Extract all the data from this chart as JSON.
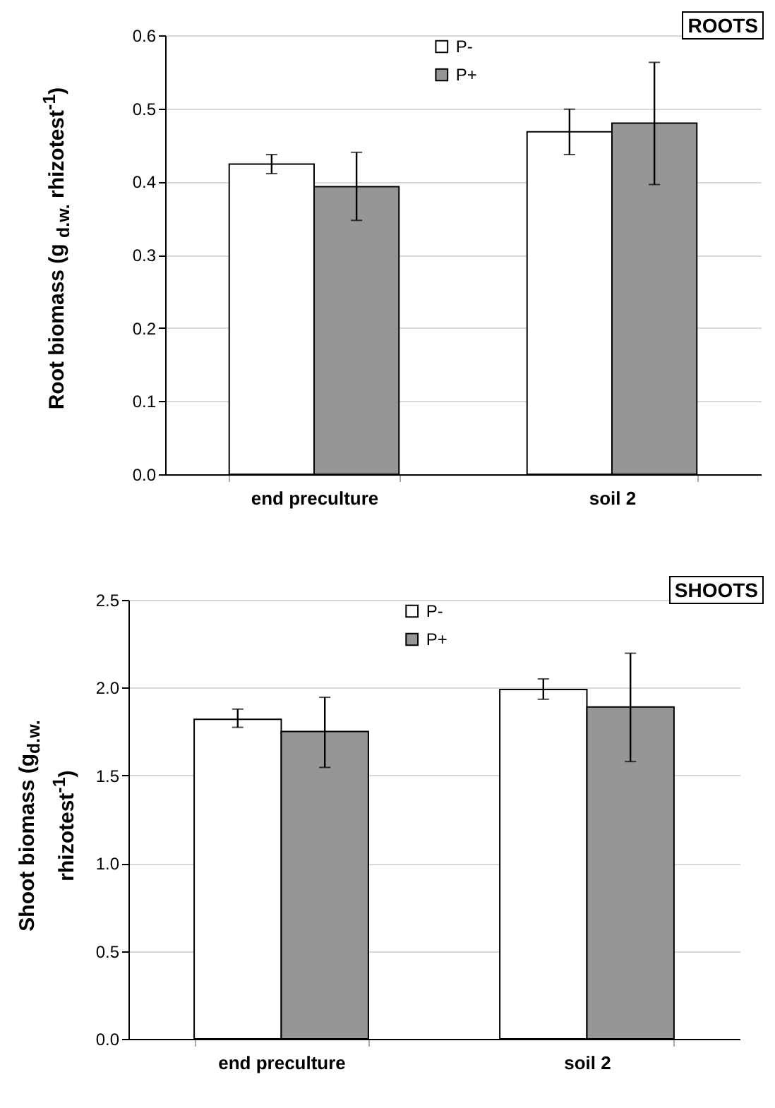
{
  "chart_data": [
    {
      "type": "bar",
      "title": "ROOTS",
      "ylabel": "Root biomass (g $_{d.w.}$ rhizotest$^{-1}$)",
      "categories": [
        "end preculture",
        "soil 2"
      ],
      "series": [
        {
          "name": "P-",
          "color": "#ffffff",
          "values": [
            0.424,
            0.468
          ],
          "errors": [
            [
              0.411,
              0.437
            ],
            [
              0.437,
              0.499
            ]
          ]
        },
        {
          "name": "P+",
          "color": "#969696",
          "values": [
            0.393,
            0.48
          ],
          "errors": [
            [
              0.347,
              0.44
            ],
            [
              0.396,
              0.563
            ]
          ]
        }
      ],
      "ylim": [
        0,
        0.6
      ],
      "yticks": [
        {
          "value": 0,
          "label": "0.0"
        },
        0.1,
        0.2,
        0.3,
        0.4,
        0.5,
        0.6
      ],
      "grid": "y",
      "legend": "top"
    },
    {
      "type": "bar",
      "title": "SHOOTS",
      "ylabel": "Shoot biomass (g$_{d.w.}$ rhizotest$^{-1}$)",
      "categories": [
        "end preculture",
        "soil 2"
      ],
      "series": [
        {
          "name": "P-",
          "color": "#ffffff",
          "values": [
            1.82,
            1.99
          ],
          "errors": [
            [
              1.774,
              1.878
            ],
            [
              1.934,
              2.05
            ]
          ]
        },
        {
          "name": "P+",
          "color": "#969696",
          "values": [
            1.75,
            1.89
          ],
          "errors": [
            [
              1.546,
              1.945
            ],
            [
              1.579,
              2.196
            ]
          ]
        }
      ],
      "ylim": [
        0,
        2.5
      ],
      "yticks": [
        {
          "value": 0,
          "label": "0.0"
        },
        {
          "value": 0.5,
          "label": "0.5"
        },
        {
          "value": 1,
          "label": "1.0"
        },
        {
          "value": 1.5,
          "label": "1.5"
        },
        {
          "value": 2,
          "label": "2.0"
        },
        {
          "value": 2.5,
          "label": "2.5"
        }
      ],
      "grid": "y",
      "legend": "top"
    }
  ]
}
